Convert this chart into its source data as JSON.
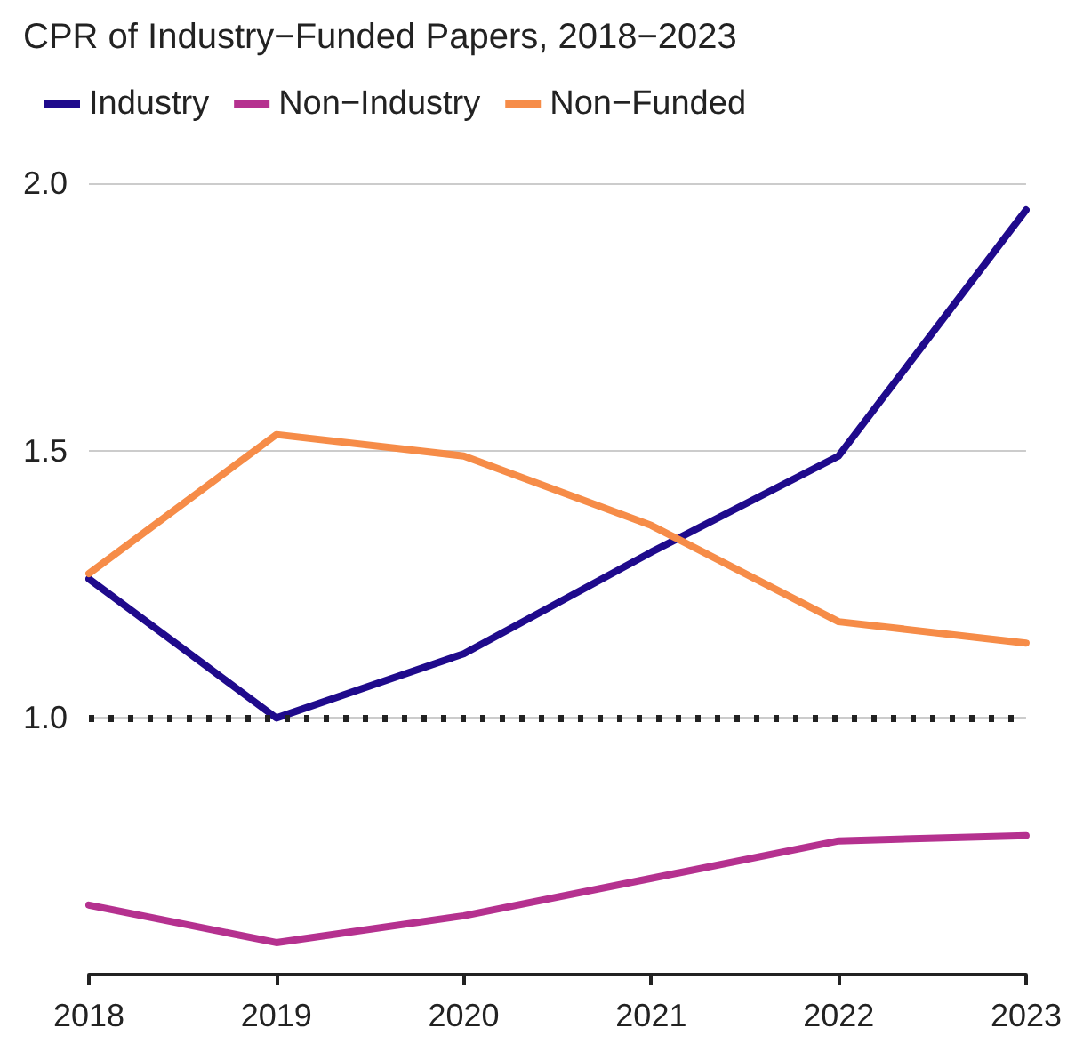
{
  "chart_data": {
    "type": "line",
    "title": "CPR of Industry−Funded Papers, 2018−2023",
    "categories": [
      "2018",
      "2019",
      "2020",
      "2021",
      "2022",
      "2023"
    ],
    "series": [
      {
        "name": "Industry",
        "color": "#1f0a8c",
        "values": [
          1.26,
          1.0,
          1.12,
          1.31,
          1.49,
          1.95
        ]
      },
      {
        "name": "Non−Industry",
        "color": "#b5318f",
        "values": [
          0.65,
          0.58,
          0.63,
          0.7,
          0.77,
          0.78
        ]
      },
      {
        "name": "Non−Funded",
        "color": "#f68c48",
        "values": [
          1.27,
          1.53,
          1.49,
          1.36,
          1.18,
          1.14
        ]
      }
    ],
    "ylim": [
      0.52,
      2
    ],
    "yticks": [
      {
        "value": 1,
        "label": "1.0"
      },
      {
        "value": 1.5,
        "label": "1.5"
      },
      {
        "value": 2,
        "label": "2.0"
      }
    ],
    "ref_lines": [
      {
        "axis": "y",
        "value": 1,
        "color": "#222222",
        "line_style": "dotted"
      }
    ],
    "grid": "y",
    "legend": "top left",
    "marker": "none",
    "line_style": "solid"
  }
}
